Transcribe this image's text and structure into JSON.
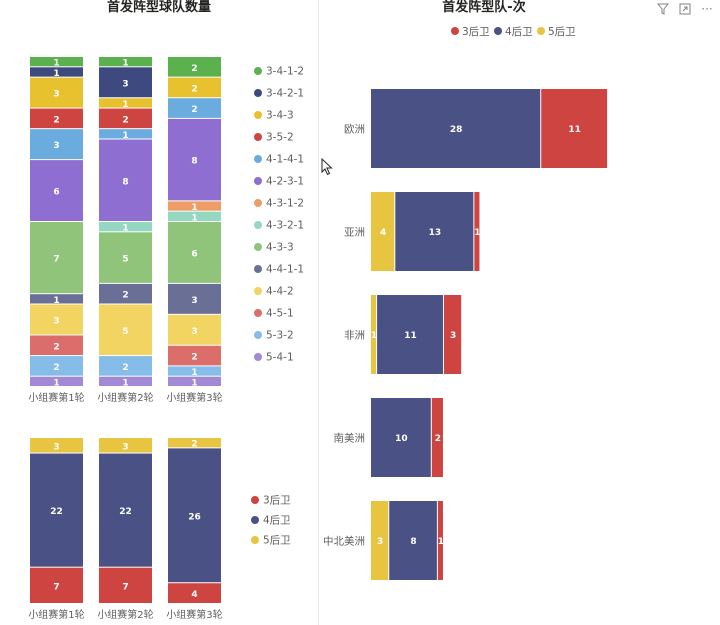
{
  "colors": {
    "c3": "#5BB14E",
    "c4": "#3E4A7F",
    "c5": "#E8C12F",
    "c6": "#CD4440",
    "c8": "#6AACDE",
    "c9": "#8E6ED1",
    "c10": "#EE9D66",
    "c11": "#95D8C2",
    "c12": "#8FC47A",
    "c13": "#6A6F96",
    "c14": "#F1D462",
    "c15": "#DB6E6A",
    "c16": "#85BDE8",
    "c17": "#A189D6",
    "def3": "#CD4440",
    "def4": "#4A5285",
    "def5": "#E8C540"
  },
  "left_title": "首发阵型球队数量",
  "right_title": "首发阵型队-次",
  "toolbar": {
    "filter_icon": "filter-icon",
    "expand_icon": "focus-mode-icon",
    "more_icon": "more-options-icon",
    "more_label": "···"
  },
  "chart_data": [
    {
      "type": "bar",
      "stacked": true,
      "orientation": "vertical",
      "categories": [
        "小组赛第1轮",
        "小组赛第2轮",
        "小组赛第3轮"
      ],
      "series": [
        {
          "name": "3-4-1-2",
          "values": [
            1,
            1,
            2
          ],
          "color_key": "c3"
        },
        {
          "name": "3-4-2-1",
          "values": [
            1,
            3,
            0
          ],
          "color_key": "c4"
        },
        {
          "name": "3-4-3",
          "values": [
            3,
            1,
            2
          ],
          "color_key": "c5"
        },
        {
          "name": "3-5-2",
          "values": [
            2,
            2,
            0
          ],
          "color_key": "c6"
        },
        {
          "name": "4-1-4-1",
          "values": [
            3,
            1,
            2
          ],
          "color_key": "c8"
        },
        {
          "name": "4-2-3-1",
          "values": [
            6,
            8,
            8
          ],
          "color_key": "c9"
        },
        {
          "name": "4-3-1-2",
          "values": [
            0,
            0,
            1
          ],
          "color_key": "c10"
        },
        {
          "name": "4-3-2-1",
          "values": [
            0,
            1,
            1
          ],
          "color_key": "c11"
        },
        {
          "name": "4-3-3",
          "values": [
            7,
            5,
            6
          ],
          "color_key": "c12"
        },
        {
          "name": "4-4-1-1",
          "values": [
            1,
            2,
            3
          ],
          "color_key": "c13"
        },
        {
          "name": "4-4-2",
          "values": [
            3,
            5,
            3
          ],
          "color_key": "c14"
        },
        {
          "name": "4-5-1",
          "values": [
            2,
            0,
            2
          ],
          "color_key": "c15"
        },
        {
          "name": "5-3-2",
          "values": [
            2,
            2,
            1
          ],
          "color_key": "c16"
        },
        {
          "name": "5-4-1",
          "values": [
            1,
            1,
            1
          ],
          "color_key": "c17"
        }
      ],
      "legend_position": "right"
    },
    {
      "type": "bar",
      "stacked": true,
      "orientation": "vertical",
      "categories": [
        "小组赛第1轮",
        "小组赛第2轮",
        "小组赛第3轮"
      ],
      "series": [
        {
          "name": "5后卫",
          "values": [
            3,
            3,
            2
          ],
          "color_key": "def5"
        },
        {
          "name": "4后卫",
          "values": [
            22,
            22,
            26
          ],
          "color_key": "def4"
        },
        {
          "name": "3后卫",
          "values": [
            7,
            7,
            4
          ],
          "color_key": "def3"
        }
      ],
      "legend": [
        "3后卫",
        "4后卫",
        "5后卫"
      ],
      "legend_position": "right"
    },
    {
      "type": "bar",
      "stacked": true,
      "orientation": "horizontal",
      "categories": [
        "欧洲",
        "亚洲",
        "非洲",
        "南美洲",
        "中北美洲"
      ],
      "series": [
        {
          "name": "5后卫",
          "values": [
            0,
            4,
            1,
            0,
            3
          ],
          "color_key": "def5"
        },
        {
          "name": "4后卫",
          "values": [
            28,
            13,
            11,
            10,
            8
          ],
          "color_key": "def4"
        },
        {
          "name": "3后卫",
          "values": [
            11,
            1,
            3,
            2,
            1
          ],
          "color_key": "def3"
        }
      ],
      "legend": [
        "3后卫",
        "4后卫",
        "5后卫"
      ],
      "legend_position": "top-center"
    }
  ]
}
